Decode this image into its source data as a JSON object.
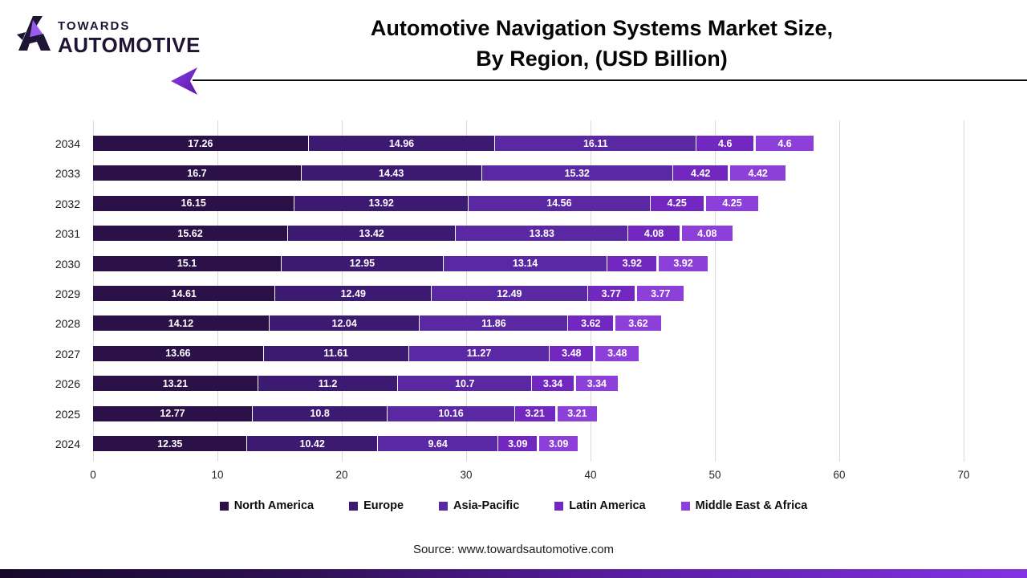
{
  "logo": {
    "top": "TOWARDS",
    "bottom": "AUTOMOTIVE",
    "dark_color": "#1e1433",
    "accent_color": "#9a5cf0"
  },
  "title": {
    "line1": "Automotive Navigation Systems Market Size,",
    "line2": "By Region, (USD Billion)"
  },
  "chart_data": {
    "type": "bar",
    "orientation": "horizontal",
    "stacked": true,
    "title": "Automotive Navigation Systems Market Size, By Region, (USD Billion)",
    "xlabel": "",
    "ylabel": "",
    "xlim": [
      0,
      70
    ],
    "xticks": [
      0,
      10,
      20,
      30,
      40,
      50,
      60,
      70
    ],
    "grid": true,
    "legend_position": "bottom",
    "categories": [
      "2034",
      "2033",
      "2032",
      "2031",
      "2030",
      "2029",
      "2028",
      "2027",
      "2026",
      "2025",
      "2024"
    ],
    "series": [
      {
        "name": "North America",
        "color": "#2b1148",
        "values": [
          17.26,
          16.7,
          16.15,
          15.62,
          15.1,
          14.61,
          14.12,
          13.66,
          13.21,
          12.77,
          12.35
        ]
      },
      {
        "name": "Europe",
        "color": "#3c1a72",
        "values": [
          14.96,
          14.43,
          13.92,
          13.42,
          12.95,
          12.49,
          12.04,
          11.61,
          11.2,
          10.8,
          10.42
        ]
      },
      {
        "name": "Asia-Pacific",
        "color": "#5b28a4",
        "values": [
          16.11,
          15.32,
          14.56,
          13.83,
          13.14,
          12.49,
          11.86,
          11.27,
          10.7,
          10.16,
          9.64
        ]
      },
      {
        "name": "Latin America",
        "color": "#7228c0",
        "values": [
          4.6,
          4.42,
          4.25,
          4.08,
          3.92,
          3.77,
          3.62,
          3.48,
          3.34,
          3.21,
          3.09
        ]
      },
      {
        "name": "Middle East & Africa",
        "color": "#8c3fd9",
        "values": [
          4.6,
          4.42,
          4.25,
          4.08,
          3.92,
          3.77,
          3.62,
          3.48,
          3.34,
          3.21,
          3.09
        ]
      }
    ]
  },
  "footer": {
    "source": "Source: www.towardsautomotive.com"
  }
}
